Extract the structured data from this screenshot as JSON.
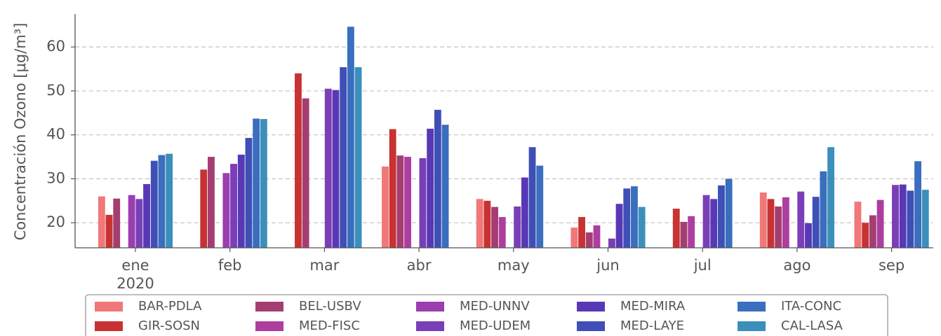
{
  "chart_data": {
    "type": "bar",
    "ylabel": "Concentración Ozono [μg/m³]",
    "categories": [
      "ene",
      "feb",
      "mar",
      "abr",
      "may",
      "jun",
      "jul",
      "ago",
      "sep"
    ],
    "x_sublabel": "2020",
    "ylim": [
      14.3,
      67.5
    ],
    "yticks": [
      20,
      30,
      40,
      50,
      60
    ],
    "grid": true,
    "legend": "bottom",
    "series": [
      {
        "name": "BAR-PDLA",
        "color": "#f07878",
        "values": [
          26.0,
          null,
          null,
          32.8,
          25.4,
          18.9,
          null,
          26.9,
          24.8
        ]
      },
      {
        "name": "GIR-SOSN",
        "color": "#c83232",
        "values": [
          21.8,
          32.1,
          54.0,
          41.3,
          25.0,
          21.3,
          23.2,
          25.4,
          20.0
        ]
      },
      {
        "name": "BEL-USBV",
        "color": "#a43e70",
        "values": [
          25.5,
          35.0,
          48.3,
          35.3,
          23.6,
          17.8,
          20.2,
          23.7,
          21.7
        ]
      },
      {
        "name": "MED-FISC",
        "color": "#ad3ea0",
        "values": [
          null,
          null,
          null,
          35.0,
          21.3,
          19.4,
          21.5,
          25.8,
          25.2
        ]
      },
      {
        "name": "MED-UNNV",
        "color": "#9a3eb0",
        "values": [
          26.3,
          31.3,
          null,
          null,
          null,
          null,
          null,
          null,
          null
        ]
      },
      {
        "name": "MED-UDEM",
        "color": "#7a3eb6",
        "values": [
          25.4,
          33.4,
          50.5,
          34.7,
          23.7,
          16.4,
          26.3,
          27.1,
          28.6
        ]
      },
      {
        "name": "MED-MIRA",
        "color": "#5838b6",
        "values": [
          28.8,
          35.5,
          50.2,
          41.4,
          30.3,
          24.3,
          25.4,
          19.9,
          28.7
        ]
      },
      {
        "name": "MED-LAYE",
        "color": "#3f4fb6",
        "values": [
          34.1,
          39.3,
          55.4,
          45.7,
          37.2,
          27.8,
          28.5,
          25.9,
          27.3
        ]
      },
      {
        "name": "ITA-CONC",
        "color": "#3a6ebe",
        "values": [
          35.4,
          43.7,
          64.6,
          42.3,
          33.0,
          28.3,
          30.0,
          31.7,
          34.0
        ]
      },
      {
        "name": "CAL-LASA",
        "color": "#3a90ba",
        "values": [
          35.7,
          43.6,
          55.4,
          null,
          null,
          23.6,
          null,
          37.2,
          27.5
        ]
      }
    ]
  }
}
